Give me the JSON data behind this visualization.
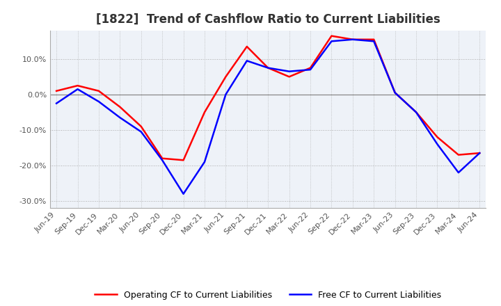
{
  "title": "[1822]  Trend of Cashflow Ratio to Current Liabilities",
  "x_labels": [
    "Jun-19",
    "Sep-19",
    "Dec-19",
    "Mar-20",
    "Jun-20",
    "Sep-20",
    "Dec-20",
    "Mar-21",
    "Jun-21",
    "Sep-21",
    "Dec-21",
    "Mar-22",
    "Jun-22",
    "Sep-22",
    "Dec-22",
    "Mar-23",
    "Jun-23",
    "Sep-23",
    "Dec-23",
    "Mar-24",
    "Jun-24"
  ],
  "operating_cf": [
    1.0,
    2.5,
    1.0,
    -3.5,
    -9.0,
    -18.0,
    -18.5,
    -5.0,
    5.0,
    13.5,
    7.5,
    5.0,
    7.5,
    16.5,
    15.5,
    15.5,
    0.5,
    -5.0,
    -12.0,
    -17.0,
    -16.5
  ],
  "free_cf": [
    -2.5,
    1.5,
    -2.0,
    -6.5,
    -10.5,
    -18.5,
    -28.0,
    -19.0,
    0.0,
    9.5,
    7.5,
    6.5,
    7.0,
    15.0,
    15.5,
    15.0,
    0.5,
    -5.0,
    -14.0,
    -22.0,
    -16.5
  ],
  "operating_color": "#ff0000",
  "free_color": "#0000ff",
  "ylim": [
    -32,
    18
  ],
  "yticks": [
    10,
    0,
    -10,
    -20,
    -30
  ],
  "background_color": "#ffffff",
  "plot_bg_color": "#eef2f8",
  "grid_color": "#aaaaaa",
  "zero_line_color": "#888888",
  "title_fontsize": 12,
  "tick_fontsize": 8,
  "legend_operating": "Operating CF to Current Liabilities",
  "legend_free": "Free CF to Current Liabilities"
}
